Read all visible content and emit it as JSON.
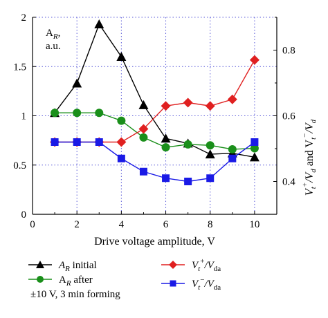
{
  "chart_data": {
    "type": "line",
    "xlabel": "Drive voltage amplitude, V",
    "x_ticks": [
      "0",
      "2",
      "4",
      "6",
      "8",
      "10"
    ],
    "xlim": [
      0,
      11
    ],
    "left_axis": {
      "ylim": [
        0,
        2
      ],
      "ticks": [
        "0",
        "0.5",
        "1",
        "1.5",
        "2"
      ]
    },
    "right_axis": {
      "ylim": [
        0.3,
        0.9
      ],
      "ticks": [
        "0.4",
        "0.6",
        "0.8"
      ],
      "label_parts": [
        "V",
        "t",
        "+",
        "/V",
        "d",
        " and V",
        "t",
        "−",
        "/V",
        "d"
      ]
    },
    "annotation": {
      "line1_main": "A",
      "line1_sub": "R",
      "line1_end": ",",
      "line2": "a.u."
    },
    "grid": "dotted",
    "x": [
      1,
      2,
      3,
      4,
      5,
      6,
      7,
      8,
      9,
      10
    ],
    "series": [
      {
        "name_main": "A",
        "name_sub": "R",
        "name_rest": " initial",
        "axis": "left",
        "marker": "triangle",
        "color": "#000000",
        "values": [
          1.03,
          1.33,
          1.93,
          1.6,
          1.11,
          0.77,
          0.72,
          0.61,
          0.62,
          0.58
        ]
      },
      {
        "name_main": "A",
        "name_sub": "R",
        "name_rest": " after",
        "axis": "left",
        "marker": "circle",
        "color": "#1a8f1a",
        "values": [
          1.03,
          1.03,
          1.03,
          0.95,
          0.78,
          0.68,
          0.71,
          0.7,
          0.66,
          0.67
        ]
      },
      {
        "name_main": "V",
        "name_sub": "t",
        "name_sup": "+",
        "name_rest": "/V",
        "name_sub2": "da",
        "axis": "right",
        "marker": "diamond",
        "color": "#e02020",
        "values": [
          0.52,
          0.52,
          0.52,
          0.52,
          0.56,
          0.63,
          0.64,
          0.63,
          0.65,
          0.77
        ]
      },
      {
        "name_main": "V",
        "name_sub": "t",
        "name_sup": "−",
        "name_rest": "/V",
        "name_sub2": "da",
        "axis": "right",
        "marker": "square",
        "color": "#1a1ae6",
        "values": [
          0.52,
          0.52,
          0.52,
          0.47,
          0.43,
          0.41,
          0.4,
          0.41,
          0.47,
          0.52
        ]
      }
    ],
    "legend_note": "±10 V, 3 min forming"
  }
}
